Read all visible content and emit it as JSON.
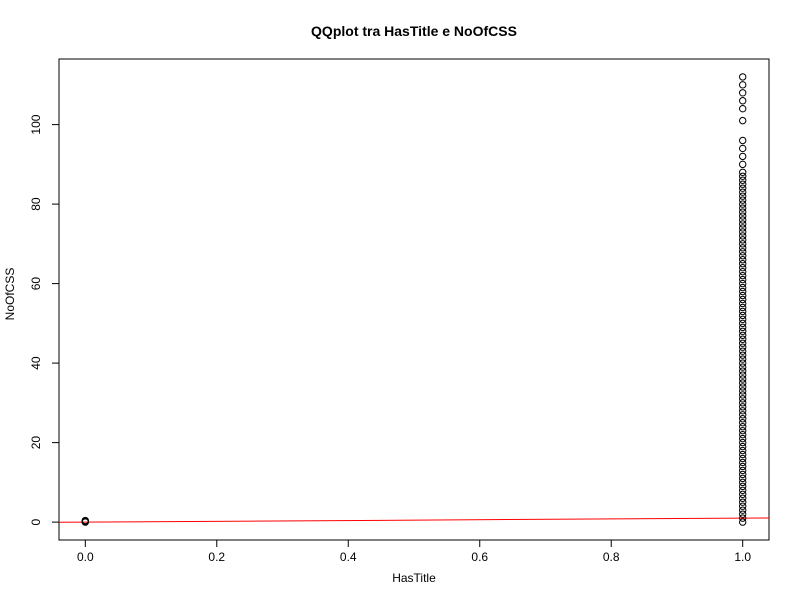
{
  "chart_data": {
    "type": "scatter",
    "title": "QQplot tra HasTitle e NoOfCSS",
    "xlabel": "HasTitle",
    "ylabel": "NoOfCSS",
    "xlim": [
      -0.04,
      1.04
    ],
    "ylim": [
      -4.5,
      116.5
    ],
    "xticks": [
      0,
      0.2,
      0.4,
      0.6,
      0.8,
      1
    ],
    "xtick_labels": [
      "0.0",
      "0.2",
      "0.4",
      "0.6",
      "0.8",
      "1.0"
    ],
    "yticks": [
      0,
      20,
      40,
      60,
      80,
      100
    ],
    "ytick_labels": [
      "0",
      "20",
      "40",
      "60",
      "80",
      "100"
    ],
    "grid": false,
    "legend": "none",
    "marker": "open-circle",
    "series": [
      {
        "x": 0,
        "y": [
          0,
          0.2,
          0.4
        ]
      },
      {
        "x": 1,
        "y": [
          0,
          1,
          2,
          3,
          4,
          5,
          6,
          7,
          8,
          9,
          10,
          11,
          12,
          13,
          14,
          15,
          16,
          17,
          18,
          19,
          20,
          21,
          22,
          23,
          24,
          25,
          26,
          27,
          28,
          29,
          30,
          31,
          32,
          33,
          34,
          35,
          36,
          37,
          38,
          39,
          40,
          41,
          42,
          43,
          44,
          45,
          46,
          47,
          48,
          49,
          50,
          51,
          52,
          53,
          54,
          55,
          56,
          57,
          58,
          59,
          60,
          61,
          62,
          63,
          64,
          65,
          66,
          67,
          68,
          69,
          70,
          71,
          72,
          73,
          74,
          75,
          76,
          77,
          78,
          79,
          80,
          81,
          82,
          83,
          84,
          85,
          86,
          87,
          88,
          90,
          92,
          94,
          96,
          101,
          104,
          106,
          108,
          110,
          112
        ]
      }
    ],
    "reference_line": {
      "x": [
        -0.04,
        1.04
      ],
      "y": [
        -0.04,
        1.04
      ]
    },
    "colors": {
      "points": "#000000",
      "reference_line": "#ff0000",
      "axes": "#000000"
    }
  }
}
